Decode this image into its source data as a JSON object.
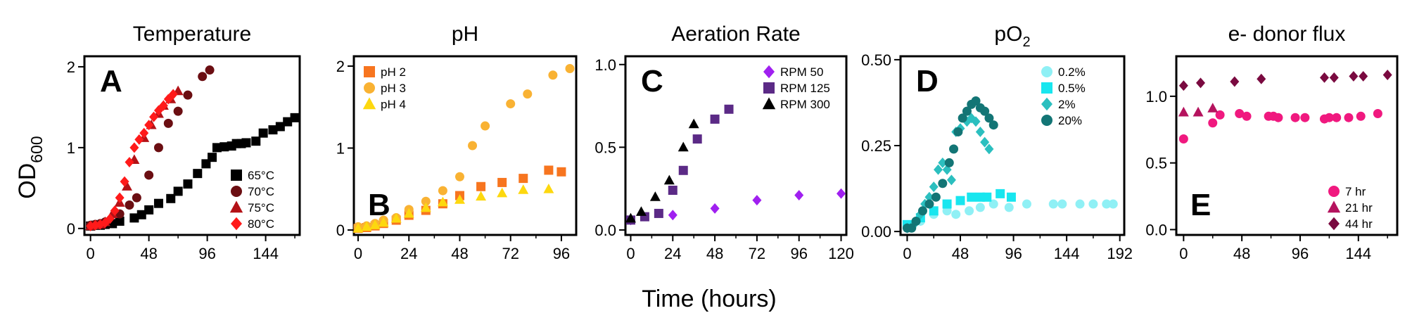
{
  "figure": {
    "xlabel": "Time (hours)",
    "ylabel_main": "OD",
    "ylabel_sub": "600"
  },
  "chart_data": [
    {
      "type": "scatter",
      "title": "Temperature",
      "letter": "A",
      "letter_pos": "top-left",
      "legend_pos": "bottom-right",
      "xlim": [
        -5,
        172
      ],
      "ylim": [
        -0.08,
        2.13
      ],
      "xticks": [
        0,
        48,
        96,
        144
      ],
      "yticks": [
        0,
        1,
        2
      ],
      "series": [
        {
          "name": "65°C",
          "marker": "square",
          "color": "#000000",
          "x": [
            0,
            4,
            8,
            12,
            18,
            24,
            36,
            42,
            48,
            56,
            66,
            72,
            80,
            88,
            95,
            100,
            104,
            110,
            116,
            120,
            124,
            128,
            136,
            142,
            150,
            156,
            162,
            168
          ],
          "y": [
            0.03,
            0.04,
            0.04,
            0.05,
            0.06,
            0.09,
            0.13,
            0.17,
            0.23,
            0.31,
            0.37,
            0.46,
            0.55,
            0.68,
            0.8,
            0.88,
            1.0,
            1.01,
            1.02,
            1.05,
            1.05,
            1.06,
            1.08,
            1.18,
            1.22,
            1.26,
            1.32,
            1.37
          ]
        },
        {
          "name": "70°C",
          "marker": "circle",
          "color": "#6b0e12",
          "x": [
            0,
            4,
            8,
            12,
            24,
            32,
            38,
            48,
            56,
            64,
            72,
            80,
            92,
            98
          ],
          "y": [
            0.04,
            0.05,
            0.06,
            0.08,
            0.18,
            0.29,
            0.38,
            0.66,
            1.0,
            1.3,
            1.45,
            1.65,
            1.88,
            1.96
          ]
        },
        {
          "name": "75°C",
          "marker": "triangle",
          "color": "#b31217",
          "x": [
            0,
            4,
            8,
            12,
            18,
            24,
            30,
            36,
            44,
            50,
            56,
            60,
            66,
            72
          ],
          "y": [
            0.03,
            0.04,
            0.05,
            0.08,
            0.18,
            0.32,
            0.52,
            0.85,
            1.12,
            1.28,
            1.42,
            1.52,
            1.6,
            1.7
          ]
        },
        {
          "name": "80°C",
          "marker": "diamond",
          "color": "#ff1a1a",
          "x": [
            0,
            4,
            8,
            12,
            16,
            20,
            24,
            28,
            32,
            36,
            40,
            44,
            48,
            52,
            56,
            60,
            64,
            68
          ],
          "y": [
            0.03,
            0.04,
            0.05,
            0.07,
            0.12,
            0.22,
            0.38,
            0.58,
            0.82,
            1.0,
            1.1,
            1.18,
            1.28,
            1.38,
            1.46,
            1.52,
            1.6,
            1.66
          ]
        }
      ]
    },
    {
      "type": "scatter",
      "title": "pH",
      "letter": "B",
      "letter_pos": "bottom-left",
      "legend_pos": "top-left",
      "xlim": [
        -2,
        103
      ],
      "ylim": [
        -0.06,
        2.12
      ],
      "xticks": [
        0,
        24,
        48,
        72,
        96
      ],
      "yticks": [
        0,
        1,
        2
      ],
      "series": [
        {
          "name": "pH 2",
          "marker": "square",
          "color": "#f7751f",
          "x": [
            0,
            4,
            8,
            12,
            18,
            24,
            32,
            40,
            48,
            58,
            68,
            78,
            90,
            96
          ],
          "y": [
            0.02,
            0.03,
            0.05,
            0.08,
            0.12,
            0.18,
            0.24,
            0.32,
            0.42,
            0.53,
            0.58,
            0.63,
            0.73,
            0.71
          ]
        },
        {
          "name": "pH 3",
          "marker": "circle",
          "color": "#f9b233",
          "x": [
            0,
            4,
            8,
            12,
            18,
            24,
            32,
            40,
            48,
            54,
            60,
            72,
            80,
            92,
            100
          ],
          "y": [
            0.04,
            0.05,
            0.08,
            0.12,
            0.15,
            0.25,
            0.35,
            0.48,
            0.65,
            1.03,
            1.27,
            1.54,
            1.66,
            1.89,
            1.97
          ]
        },
        {
          "name": "pH 4",
          "marker": "triangle",
          "color": "#fdd80f",
          "x": [
            0,
            4,
            8,
            12,
            18,
            24,
            32,
            40,
            48,
            58,
            68,
            78,
            90
          ],
          "y": [
            0.02,
            0.04,
            0.06,
            0.09,
            0.14,
            0.2,
            0.27,
            0.34,
            0.37,
            0.41,
            0.45,
            0.49,
            0.5
          ]
        }
      ]
    },
    {
      "type": "scatter",
      "title": "Aeration Rate",
      "letter": "C",
      "letter_pos": "top-left",
      "legend_pos": "top-right",
      "xlim": [
        -3,
        123
      ],
      "ylim": [
        -0.03,
        1.05
      ],
      "xticks": [
        0,
        24,
        48,
        72,
        96,
        120
      ],
      "yticks": [
        0.0,
        0.5,
        1.0
      ],
      "ytick_labels": [
        "0.0",
        "0.5",
        "1.0"
      ],
      "series": [
        {
          "name": "RPM 50",
          "marker": "diamond",
          "color": "#a020f0",
          "x": [
            0,
            24,
            48,
            72,
            96,
            120
          ],
          "y": [
            0.06,
            0.09,
            0.13,
            0.18,
            0.21,
            0.22
          ]
        },
        {
          "name": "RPM 125",
          "marker": "square",
          "color": "#5b2a86",
          "x": [
            0,
            8,
            16,
            24,
            30,
            38,
            48,
            56
          ],
          "y": [
            0.06,
            0.08,
            0.1,
            0.24,
            0.36,
            0.55,
            0.67,
            0.73
          ]
        },
        {
          "name": "RPM 300",
          "marker": "triangle",
          "color": "#000000",
          "x": [
            0,
            6,
            14,
            22,
            30,
            36
          ],
          "y": [
            0.07,
            0.11,
            0.2,
            0.3,
            0.5,
            0.64
          ]
        }
      ]
    },
    {
      "type": "scatter",
      "title": "pO",
      "title_sub": "2",
      "letter": "D",
      "letter_pos": "top-left",
      "legend_pos": "top-right",
      "xlim": [
        -6,
        196
      ],
      "ylim": [
        -0.01,
        0.51
      ],
      "xticks": [
        0,
        48,
        96,
        144,
        192
      ],
      "yticks": [
        0.0,
        0.25,
        0.5
      ],
      "ytick_labels": [
        "0.00",
        "0.25",
        "0.50"
      ],
      "series": [
        {
          "name": "0.2%",
          "marker": "circle",
          "color": "#8ff0f5",
          "x": [
            0,
            12,
            24,
            36,
            44,
            56,
            66,
            78,
            92,
            108,
            132,
            140,
            156,
            168,
            180,
            186
          ],
          "y": [
            0.02,
            0.03,
            0.05,
            0.06,
            0.05,
            0.06,
            0.07,
            0.08,
            0.07,
            0.08,
            0.08,
            0.08,
            0.08,
            0.08,
            0.08,
            0.08
          ]
        },
        {
          "name": "0.5%",
          "marker": "square",
          "color": "#18e6ef",
          "x": [
            0,
            12,
            24,
            36,
            48,
            58,
            66,
            72,
            84,
            94
          ],
          "y": [
            0.02,
            0.04,
            0.06,
            0.08,
            0.09,
            0.1,
            0.1,
            0.1,
            0.11,
            0.1
          ]
        },
        {
          "name": "2%",
          "marker": "diamond",
          "color": "#2bbfbf",
          "x": [
            0,
            6,
            12,
            16,
            20,
            24,
            28,
            32,
            36,
            40,
            44,
            48,
            54,
            58,
            62,
            66,
            70,
            74
          ],
          "y": [
            0.01,
            0.02,
            0.05,
            0.08,
            0.1,
            0.13,
            0.18,
            0.2,
            0.18,
            0.15,
            0.29,
            0.3,
            0.32,
            0.33,
            0.32,
            0.29,
            0.26,
            0.24
          ]
        },
        {
          "name": "20%",
          "marker": "circle",
          "color": "#137575",
          "x": [
            0,
            4,
            8,
            14,
            20,
            26,
            32,
            38,
            42,
            46,
            50,
            54,
            58,
            62,
            66,
            70,
            74,
            78
          ],
          "y": [
            0.01,
            0.01,
            0.03,
            0.06,
            0.08,
            0.1,
            0.14,
            0.2,
            0.24,
            0.29,
            0.33,
            0.35,
            0.37,
            0.38,
            0.36,
            0.35,
            0.33,
            0.31
          ]
        }
      ]
    },
    {
      "type": "scatter",
      "title": "e- donor flux",
      "letter": "E",
      "letter_pos": "bottom-left",
      "legend_pos": "bottom-right",
      "xlim": [
        -6,
        176
      ],
      "ylim": [
        -0.04,
        1.3
      ],
      "xticks": [
        0,
        48,
        96,
        144
      ],
      "yticks": [
        0.0,
        0.5,
        1.0
      ],
      "ytick_labels": [
        "0.0",
        "0.5",
        "1.0"
      ],
      "series": [
        {
          "name": "7 hr",
          "marker": "circle",
          "color": "#f0197f",
          "x": [
            0,
            24,
            30,
            46,
            52,
            70,
            74,
            78,
            92,
            100,
            116,
            120,
            126,
            136,
            146,
            160
          ],
          "y": [
            0.68,
            0.8,
            0.86,
            0.87,
            0.85,
            0.85,
            0.85,
            0.84,
            0.84,
            0.84,
            0.83,
            0.84,
            0.84,
            0.84,
            0.85,
            0.87
          ]
        },
        {
          "name": "21 hr",
          "marker": "triangle",
          "color": "#b5135e",
          "x": [
            0,
            12,
            24
          ],
          "y": [
            0.88,
            0.88,
            0.91
          ]
        },
        {
          "name": "44 hr",
          "marker": "diamond",
          "color": "#7a0a40",
          "x": [
            0,
            14,
            42,
            64,
            116,
            124,
            140,
            148,
            168
          ],
          "y": [
            1.08,
            1.1,
            1.11,
            1.13,
            1.14,
            1.14,
            1.15,
            1.15,
            1.16
          ]
        }
      ]
    }
  ]
}
